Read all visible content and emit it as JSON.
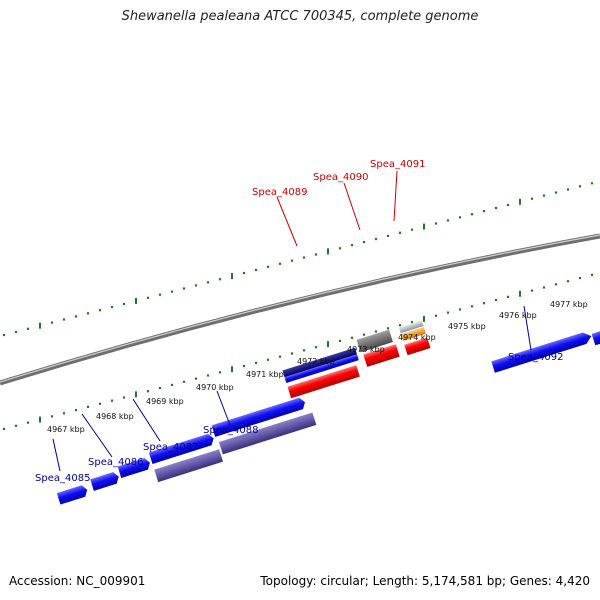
{
  "title": "Shewanella pealeana ATCC 700345, complete genome",
  "footer": {
    "accession": "Accession: NC_009901",
    "topology": "Topology: circular; Length: 5,174,581 bp; Genes: 4,420"
  },
  "colors": {
    "backbone": "#7a7a7a",
    "tick": "#1f7a1f",
    "forward_label": "#cc0000",
    "reverse_label": "#000099"
  },
  "scale_labels": [
    "4967 kbp",
    "4968 kbp",
    "4969 kbp",
    "4970 kbp",
    "4971 kbp",
    "4972 kbp",
    "4973 kbp",
    "4974 kbp",
    "4975 kbp",
    "4976 kbp",
    "4977 kbp"
  ],
  "forward_genes": [
    {
      "label": "Spea_4089"
    },
    {
      "label": "Spea_4090"
    },
    {
      "label": "Spea_4091"
    }
  ],
  "reverse_genes": [
    {
      "label": "Spea_4085"
    },
    {
      "label": "Spea_4086"
    },
    {
      "label": "Spea_4087"
    },
    {
      "label": "Spea_4088"
    },
    {
      "label": "Spea_4092"
    }
  ]
}
